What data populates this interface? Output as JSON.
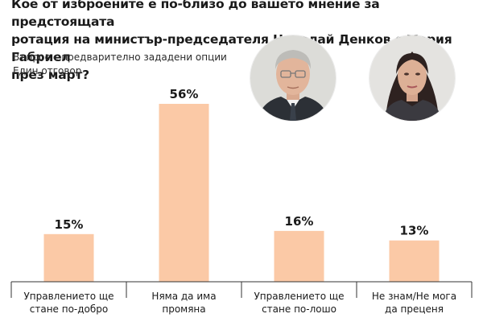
{
  "title_lines": [
    "Кое от изброените е по-близо до вашето мнение за предстоящата",
    "ротация на министър-председателя Николай Денков с Мария Габриел",
    "през март?"
  ],
  "question_type": "Въпрос с предварително зададени опции",
  "answer_type": "Един отговор",
  "colors": {
    "bar": "#fbc9a6",
    "axis": "#333333",
    "text": "#1a1a1a"
  },
  "images": [
    {
      "name": "portrait-man",
      "description": "photo"
    },
    {
      "name": "portrait-woman",
      "description": "photo"
    }
  ],
  "chart_data": {
    "type": "bar",
    "categories": [
      [
        "Управлението ще",
        "стане по-добро"
      ],
      [
        "Няма да има",
        "промяна"
      ],
      [
        "Управлението ще",
        "стане по-лошо"
      ],
      [
        "Не знам/Не мога",
        "да преценя"
      ]
    ],
    "values": [
      15,
      56,
      16,
      13
    ],
    "data_labels": [
      "15%",
      "56%",
      "16%",
      "13%"
    ],
    "unit": "%",
    "ylim": [
      0,
      60
    ],
    "grid": false,
    "legend": "none"
  }
}
